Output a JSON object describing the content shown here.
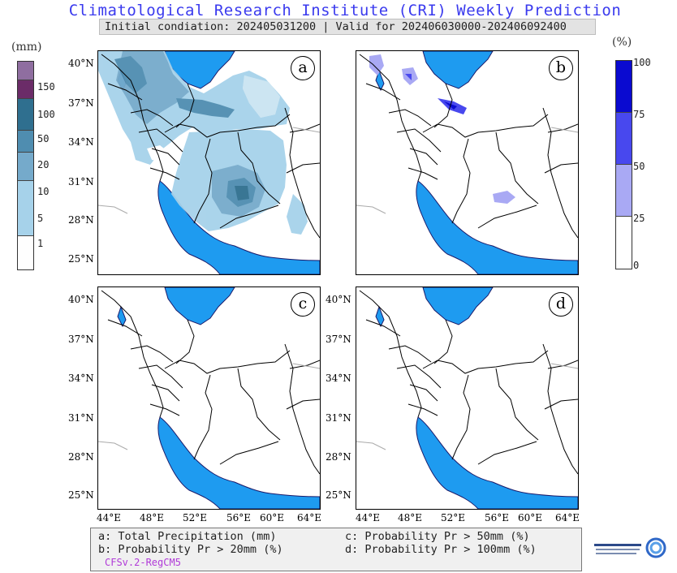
{
  "header": {
    "title": "Climatological Research Institute (CRI) Weekly Prediction",
    "subtitle": "Initial condiation: 202405031200 | Valid for 202406030000-202406092400"
  },
  "panels": [
    {
      "id": "a",
      "label": "a"
    },
    {
      "id": "b",
      "label": "b"
    },
    {
      "id": "c",
      "label": "c"
    },
    {
      "id": "d",
      "label": "d"
    }
  ],
  "axes": {
    "lat_labels": [
      "40°N",
      "37°N",
      "34°N",
      "31°N",
      "28°N",
      "25°N"
    ],
    "lon_labels": [
      "44°E",
      "48°E",
      "52°E",
      "56°E",
      "60°E",
      "64°E"
    ]
  },
  "colorbar_precip": {
    "unit": "(mm)",
    "ticks": [
      "150",
      "100",
      "50",
      "20",
      "10",
      "5",
      "1"
    ],
    "colors": [
      "#8f6ea0",
      "#6b2c68",
      "#2f6f8f",
      "#4f8db0",
      "#75aacb",
      "#a6d2ea",
      "#fefefe"
    ]
  },
  "colorbar_prob": {
    "unit": "(%)",
    "ticks": [
      "100",
      "75",
      "50",
      "25",
      "0"
    ],
    "colors": [
      "#0a0ad0",
      "#4848ee",
      "#a9a9f4",
      "#ffffff"
    ]
  },
  "legend": {
    "a": "a: Total Precipitation (mm)",
    "b": "b: Probability Pr > 20mm (%)",
    "c": "c: Probability Pr > 50mm (%)",
    "d": "d: Probability Pr > 100mm (%)",
    "model": "CFSv.2-RegCM5"
  },
  "logo": {
    "icon": "institute-logo-icon"
  },
  "colors": {
    "title": "#3a3aee",
    "water": "#1e9bf0",
    "land": "#ffffff"
  }
}
